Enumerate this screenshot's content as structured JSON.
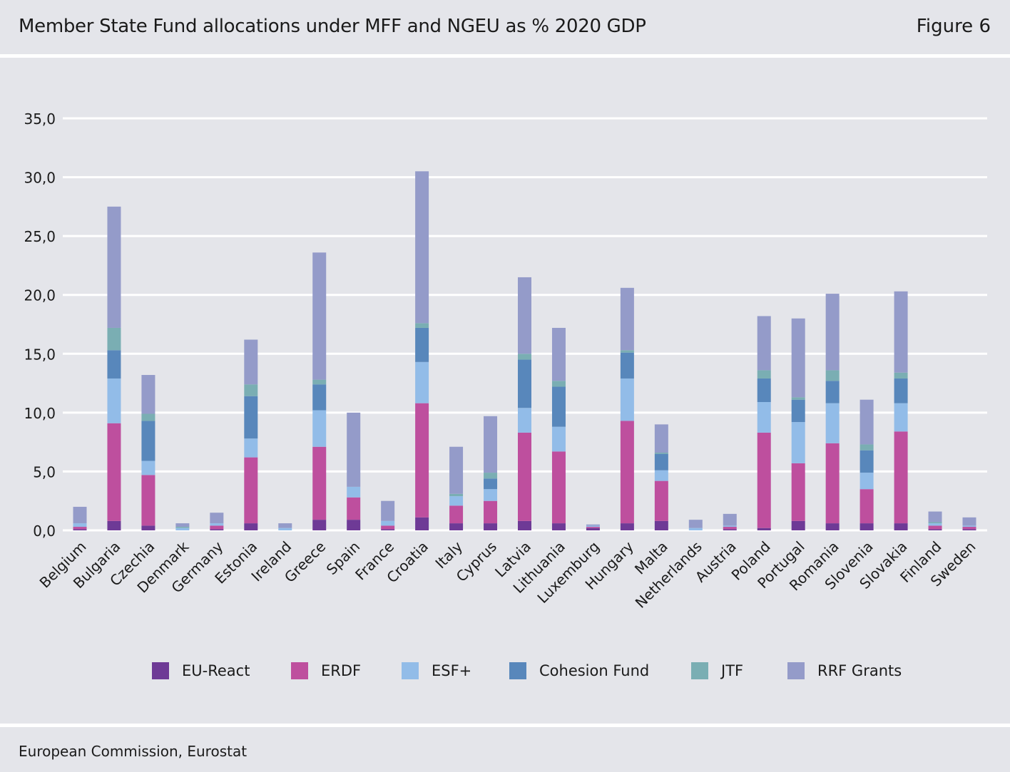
{
  "header": {
    "title": "Member State Fund allocations under MFF and NGEU as % 2020 GDP",
    "figure": "Figure 6"
  },
  "footer": {
    "source": "European Commission, Eurostat"
  },
  "chart_data": {
    "type": "bar",
    "stacked": true,
    "title": "Member State Fund allocations under MFF and NGEU as % 2020 GDP",
    "xlabel": "",
    "ylabel": "",
    "ylim": [
      0,
      35
    ],
    "yticks": [
      "0,0",
      "5,0",
      "10,0",
      "15,0",
      "20,0",
      "25,0",
      "30,0",
      "35,0"
    ],
    "grid": true,
    "legend_position": "bottom",
    "categories": [
      "Belgium",
      "Bulgaria",
      "Czechia",
      "Denmark",
      "Germany",
      "Estonia",
      "Ireland",
      "Greece",
      "Spain",
      "France",
      "Croatia",
      "Italy",
      "Cyprus",
      "Latvia",
      "Lithuania",
      "Luxemburg",
      "Hungary",
      "Malta",
      "Netherlands",
      "Austria",
      "Poland",
      "Portugal",
      "Romania",
      "Slovenia",
      "Slovakia",
      "Finland",
      "Sweden"
    ],
    "series": [
      {
        "name": "EU-React",
        "color": "#6e3a96",
        "values": [
          0.1,
          0.8,
          0.4,
          0.0,
          0.1,
          0.6,
          0.0,
          0.9,
          0.9,
          0.1,
          1.1,
          0.6,
          0.6,
          0.8,
          0.6,
          0.2,
          0.6,
          0.8,
          0.0,
          0.1,
          0.2,
          0.8,
          0.6,
          0.6,
          0.6,
          0.1,
          0.1
        ]
      },
      {
        "name": "ERDF",
        "color": "#be4f9e",
        "values": [
          0.2,
          8.3,
          4.3,
          0.0,
          0.3,
          5.6,
          0.0,
          6.2,
          1.9,
          0.3,
          9.7,
          1.5,
          1.9,
          7.5,
          6.1,
          0.1,
          8.7,
          3.4,
          0.0,
          0.2,
          8.1,
          4.9,
          6.8,
          2.9,
          7.8,
          0.3,
          0.2
        ]
      },
      {
        "name": "ESF+",
        "color": "#92bce8",
        "values": [
          0.3,
          3.8,
          1.2,
          0.2,
          0.2,
          1.6,
          0.2,
          3.1,
          0.9,
          0.4,
          3.5,
          0.8,
          1.0,
          2.1,
          2.1,
          0.1,
          3.6,
          0.9,
          0.2,
          0.1,
          2.6,
          3.5,
          3.4,
          1.4,
          2.4,
          0.2,
          0.1
        ]
      },
      {
        "name": "Cohesion Fund",
        "color": "#5887bb",
        "values": [
          0.0,
          2.4,
          3.4,
          0.0,
          0.0,
          3.6,
          0.0,
          2.2,
          0.0,
          0.0,
          2.9,
          0.0,
          0.9,
          4.1,
          3.4,
          0.0,
          2.2,
          1.4,
          0.0,
          0.0,
          2.0,
          1.9,
          1.9,
          1.9,
          2.1,
          0.0,
          0.0
        ]
      },
      {
        "name": "JTF",
        "color": "#7aaeb3",
        "values": [
          0.0,
          1.9,
          0.6,
          0.1,
          0.0,
          1.0,
          0.0,
          0.4,
          0.0,
          0.0,
          0.4,
          0.2,
          0.5,
          0.5,
          0.5,
          0.0,
          0.2,
          0.1,
          0.0,
          0.0,
          0.7,
          0.2,
          0.9,
          0.5,
          0.5,
          0.1,
          0.0
        ]
      },
      {
        "name": "RRF Grants",
        "color": "#949bc9",
        "values": [
          1.4,
          10.3,
          3.3,
          0.3,
          0.9,
          3.8,
          0.4,
          10.8,
          6.3,
          1.7,
          12.9,
          4.0,
          4.8,
          6.5,
          4.5,
          0.1,
          5.3,
          2.4,
          0.7,
          1.0,
          4.6,
          6.7,
          6.5,
          3.8,
          6.9,
          0.9,
          0.7
        ]
      }
    ]
  }
}
